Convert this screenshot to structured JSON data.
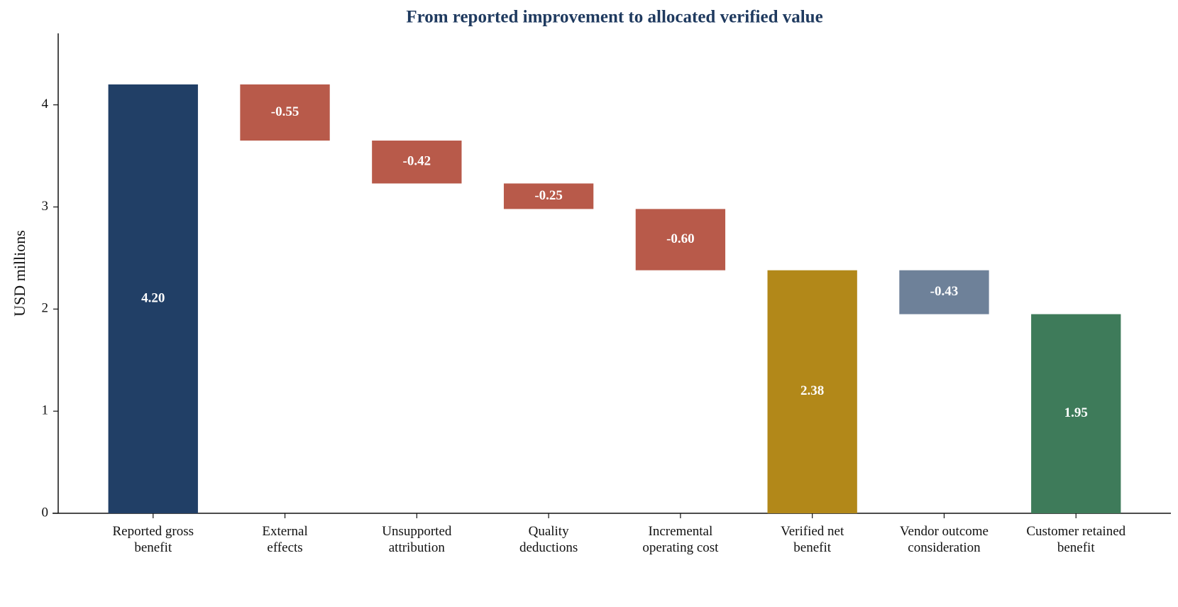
{
  "chart_data": {
    "type": "waterfall",
    "title": "From reported improvement to allocated verified value",
    "y_label": "USD millions",
    "categories": [
      "Reported gross\nbenefit",
      "External\neffects",
      "Unsupported\nattribution",
      "Quality\ndeductions",
      "Incremental\noperating cost",
      "Verified net\nbenefit",
      "Vendor outcome\nconsideration",
      "Customer retained\nbenefit"
    ],
    "measures": [
      "absolute",
      "relative",
      "relative",
      "relative",
      "relative",
      "total",
      "relative",
      "total"
    ],
    "values": [
      4.2,
      -0.55,
      -0.42,
      -0.25,
      -0.6,
      2.38,
      -0.43,
      1.95
    ],
    "value_labels": [
      "4.20",
      "-0.55",
      "-0.42",
      "-0.25",
      "-0.60",
      "2.38",
      "-0.43",
      "1.95"
    ],
    "colors": [
      "#213f66",
      "#b85a4a",
      "#b85a4a",
      "#b85a4a",
      "#b85a4a",
      "#b28819",
      "#6e8199",
      "#3e7b5a"
    ],
    "ylim": [
      0,
      4.7
    ],
    "yticks": [
      0,
      1,
      2,
      3,
      4
    ]
  }
}
